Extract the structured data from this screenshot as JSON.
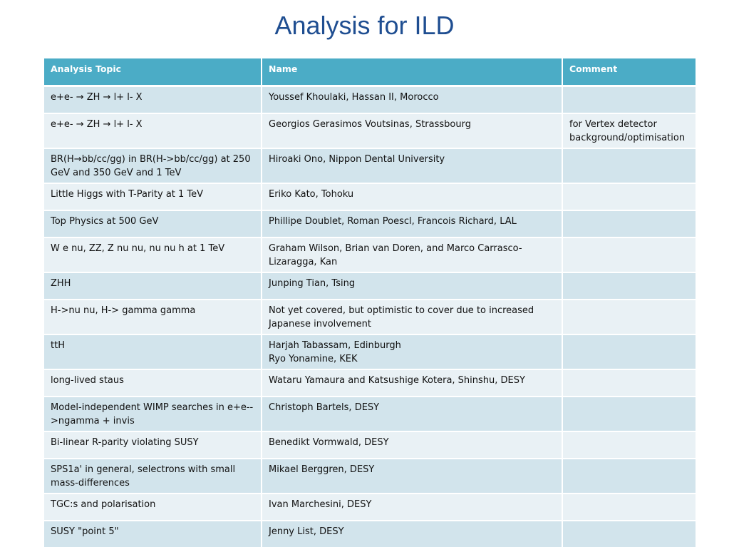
{
  "title": "Analysis for ILD",
  "table": {
    "headers": [
      "Analysis Topic",
      "Name",
      "Comment"
    ],
    "rows": [
      {
        "topic": "e+e- → ZH → l+ l- X",
        "name": "Youssef Khoulaki, Hassan II, Morocco",
        "comment": ""
      },
      {
        "topic": "e+e- → ZH → l+ l- X",
        "name": "Georgios Gerasimos Voutsinas, Strassbourg",
        "comment": "for Vertex detector background/optimisation"
      },
      {
        "topic": "BR(H→bb/cc/gg) in BR(H->bb/cc/gg) at 250 GeV and 350 GeV and 1 TeV",
        "name": "Hiroaki Ono, Nippon Dental University",
        "comment": ""
      },
      {
        "topic": "Little Higgs with T-Parity at 1 TeV",
        "name": "Eriko Kato, Tohoku",
        "comment": ""
      },
      {
        "topic": "Top Physics at 500 GeV",
        "name": "Phillipe Doublet, Roman Poescl, Francois Richard, LAL",
        "comment": ""
      },
      {
        "topic": "W e nu, ZZ, Z nu nu, nu nu h at 1 TeV",
        "name": "Graham Wilson, Brian van Doren, and Marco Carrasco-Lizaragga, Kan",
        "comment": ""
      },
      {
        "topic": "ZHH",
        "name": "Junping Tian, Tsing",
        "comment": ""
      },
      {
        "topic": "H->nu nu, H-> gamma gamma",
        "name": "Not yet covered, but optimistic to cover due to increased Japanese involvement",
        "comment": ""
      },
      {
        "topic": "ttH",
        "name": "Harjah Tabassam, Edinburgh",
        "name2": "Ryo Yonamine, KEK",
        "comment": ""
      },
      {
        "topic": "long-lived staus",
        "name": "Wataru Yamaura and Katsushige Kotera, Shinshu, DESY",
        "comment": ""
      },
      {
        "topic": "Model-independent WIMP searches in e+e-->ngamma + invis",
        "name": "Christoph Bartels, DESY",
        "comment": ""
      },
      {
        "topic": "Bi-linear R-parity violating SUSY",
        "name": "Benedikt Vormwald, DESY",
        "comment": ""
      },
      {
        "topic": "SPS1a' in general, selectrons with small mass-differences",
        "name": "Mikael Berggren, DESY",
        "comment": ""
      },
      {
        "topic": "TGC:s and polarisation",
        "name": "Ivan Marchesini, DESY",
        "comment": ""
      },
      {
        "topic": "SUSY \"point 5\"",
        "name": "Jenny List, DESY",
        "comment": ""
      }
    ]
  }
}
